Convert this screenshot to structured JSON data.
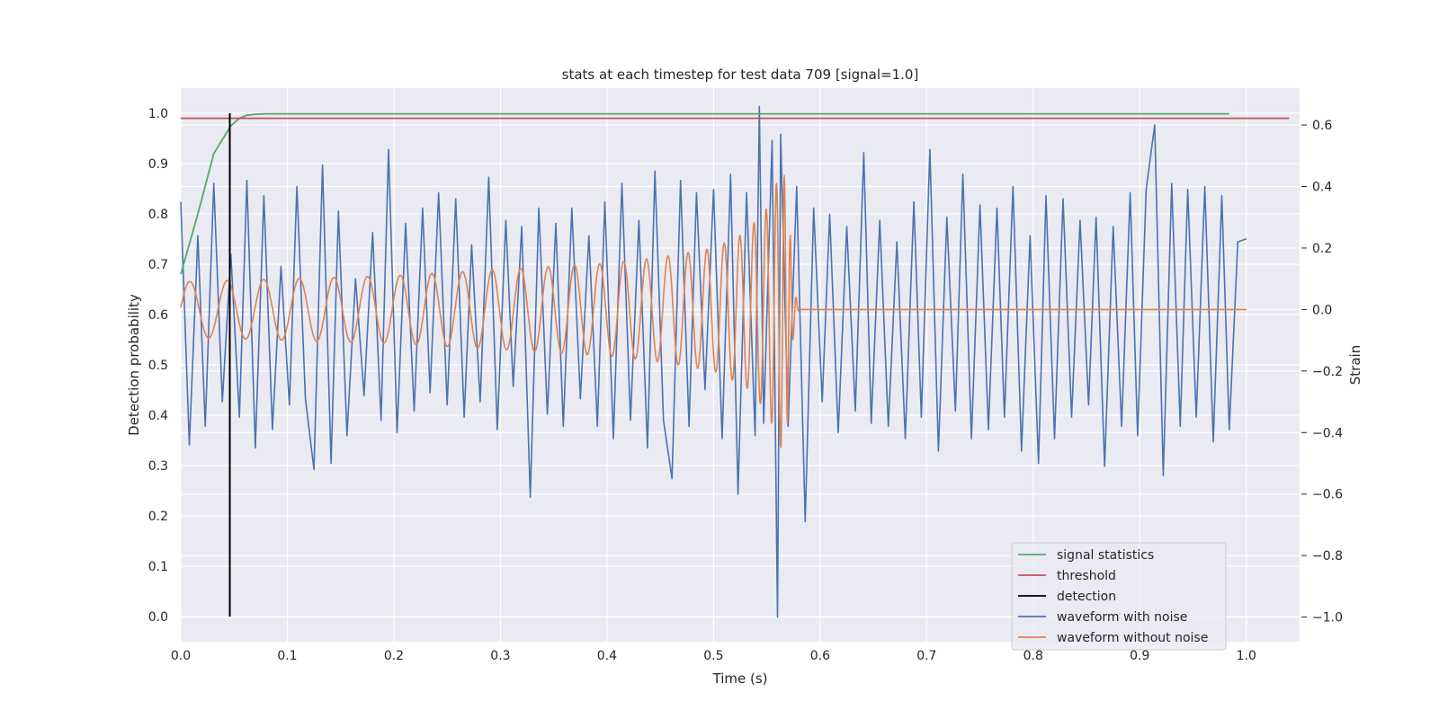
{
  "chart_data": {
    "type": "line",
    "title": "stats at each timestep for test data 709 [signal=1.0]",
    "xlabel": "Time (s)",
    "ylabel_left": "Detection probability",
    "ylabel_right": "Strain",
    "xlim": [
      0.0,
      1.05
    ],
    "ylim_left": [
      -0.05,
      1.05
    ],
    "ylim_right": [
      -1.08,
      0.72
    ],
    "xticks": [
      "0.0",
      "0.1",
      "0.2",
      "0.3",
      "0.4",
      "0.5",
      "0.6",
      "0.7",
      "0.8",
      "0.9",
      "1.0"
    ],
    "yticks_left": [
      "0.0",
      "0.1",
      "0.2",
      "0.3",
      "0.4",
      "0.5",
      "0.6",
      "0.7",
      "0.8",
      "0.9",
      "1.0"
    ],
    "yticks_right": [
      "−1.0",
      "−0.8",
      "−0.6",
      "−0.4",
      "−0.2",
      "0.0",
      "0.2",
      "0.4",
      "0.6"
    ],
    "grid": true,
    "legend_position": "lower-right",
    "colors": {
      "background": "#eaeaf2",
      "signal_statistics": "#55a868",
      "threshold": "#c44e52",
      "detection": "#000000",
      "waveform_with_noise": "#4c72b0",
      "waveform_without_noise": "#dd8452"
    },
    "series": [
      {
        "name": "signal statistics",
        "axis": "left",
        "x": [
          0.0,
          0.016,
          0.031,
          0.047,
          0.055,
          0.062,
          0.07,
          0.08,
          0.1,
          0.2,
          0.4,
          0.6,
          0.8,
          0.984
        ],
        "y": [
          0.68,
          0.8,
          0.92,
          0.975,
          0.99,
          0.996,
          0.998,
          0.999,
          0.999,
          0.999,
          0.999,
          0.999,
          0.999,
          0.999
        ]
      },
      {
        "name": "threshold",
        "axis": "left",
        "x": [
          0.0,
          1.04
        ],
        "y": [
          0.99,
          0.99
        ]
      },
      {
        "name": "detection",
        "axis": "left",
        "x": [
          0.046,
          0.046
        ],
        "y": [
          0.0,
          1.0
        ]
      },
      {
        "name": "waveform with noise",
        "axis": "right",
        "x": [
          0.0,
          0.008,
          0.016,
          0.023,
          0.031,
          0.039,
          0.047,
          0.055,
          0.062,
          0.07,
          0.078,
          0.086,
          0.094,
          0.102,
          0.109,
          0.117,
          0.125,
          0.133,
          0.141,
          0.148,
          0.156,
          0.164,
          0.172,
          0.18,
          0.188,
          0.195,
          0.203,
          0.211,
          0.219,
          0.227,
          0.234,
          0.242,
          0.25,
          0.258,
          0.266,
          0.273,
          0.281,
          0.289,
          0.297,
          0.305,
          0.312,
          0.32,
          0.328,
          0.336,
          0.344,
          0.352,
          0.359,
          0.367,
          0.375,
          0.383,
          0.391,
          0.398,
          0.406,
          0.414,
          0.422,
          0.43,
          0.438,
          0.445,
          0.453,
          0.461,
          0.469,
          0.477,
          0.484,
          0.492,
          0.5,
          0.508,
          0.516,
          0.523,
          0.531,
          0.539,
          0.543,
          0.547,
          0.555,
          0.56,
          0.563,
          0.57,
          0.578,
          0.586,
          0.594,
          0.602,
          0.609,
          0.617,
          0.625,
          0.633,
          0.641,
          0.648,
          0.656,
          0.664,
          0.672,
          0.68,
          0.688,
          0.695,
          0.703,
          0.711,
          0.719,
          0.727,
          0.734,
          0.742,
          0.75,
          0.758,
          0.766,
          0.773,
          0.781,
          0.789,
          0.797,
          0.805,
          0.812,
          0.82,
          0.828,
          0.836,
          0.844,
          0.852,
          0.859,
          0.867,
          0.875,
          0.883,
          0.891,
          0.898,
          0.906,
          0.914,
          0.922,
          0.93,
          0.938,
          0.945,
          0.953,
          0.961,
          0.969,
          0.977,
          0.984,
          0.992,
          1.0
        ],
        "y": [
          0.35,
          -0.44,
          0.24,
          -0.38,
          0.41,
          -0.3,
          0.18,
          -0.35,
          0.42,
          -0.45,
          0.37,
          -0.39,
          0.14,
          -0.31,
          0.4,
          -0.29,
          -0.52,
          0.47,
          -0.5,
          0.32,
          -0.41,
          0.1,
          -0.28,
          0.25,
          -0.36,
          0.52,
          -0.4,
          0.28,
          -0.33,
          0.33,
          -0.27,
          0.38,
          -0.31,
          0.36,
          -0.35,
          0.21,
          -0.3,
          0.43,
          -0.39,
          0.29,
          -0.25,
          0.27,
          -0.61,
          0.33,
          -0.34,
          0.28,
          -0.38,
          0.33,
          -0.29,
          0.24,
          -0.38,
          0.35,
          -0.42,
          0.41,
          -0.36,
          0.29,
          -0.45,
          0.45,
          -0.36,
          -0.55,
          0.42,
          -0.38,
          0.38,
          -0.26,
          0.39,
          -0.42,
          0.44,
          -0.6,
          0.38,
          -0.41,
          0.66,
          -0.37,
          0.55,
          -1.0,
          0.57,
          -0.38,
          0.4,
          -0.69,
          0.33,
          -0.3,
          0.31,
          -0.4,
          0.27,
          -0.33,
          0.51,
          -0.37,
          0.29,
          -0.38,
          0.22,
          -0.42,
          0.35,
          -0.35,
          0.52,
          -0.46,
          0.3,
          -0.33,
          0.44,
          -0.42,
          0.34,
          -0.39,
          0.33,
          -0.35,
          0.4,
          -0.46,
          0.24,
          -0.5,
          0.37,
          -0.42,
          0.36,
          -0.35,
          0.29,
          -0.31,
          0.3,
          -0.51,
          0.27,
          -0.38,
          0.38,
          -0.41,
          0.39,
          0.6,
          -0.54,
          0.41,
          -0.38,
          0.39,
          -0.35,
          0.4,
          -0.43,
          0.37,
          -0.39,
          0.22,
          0.23
        ]
      },
      {
        "name": "waveform without noise",
        "axis": "right",
        "envelope": [
          [
            0.0,
            0.09
          ],
          [
            0.1,
            0.1
          ],
          [
            0.2,
            0.11
          ],
          [
            0.3,
            0.13
          ],
          [
            0.4,
            0.15
          ],
          [
            0.45,
            0.17
          ],
          [
            0.5,
            0.2
          ],
          [
            0.53,
            0.25
          ],
          [
            0.55,
            0.33
          ],
          [
            0.56,
            0.42
          ],
          [
            0.565,
            0.47
          ],
          [
            0.57,
            0.35
          ],
          [
            0.575,
            0.08
          ],
          [
            0.58,
            0.0
          ],
          [
            1.0,
            0.0
          ]
        ],
        "phase_fn": "chirp",
        "f0_hz": 28,
        "tc": 0.572
      }
    ]
  }
}
